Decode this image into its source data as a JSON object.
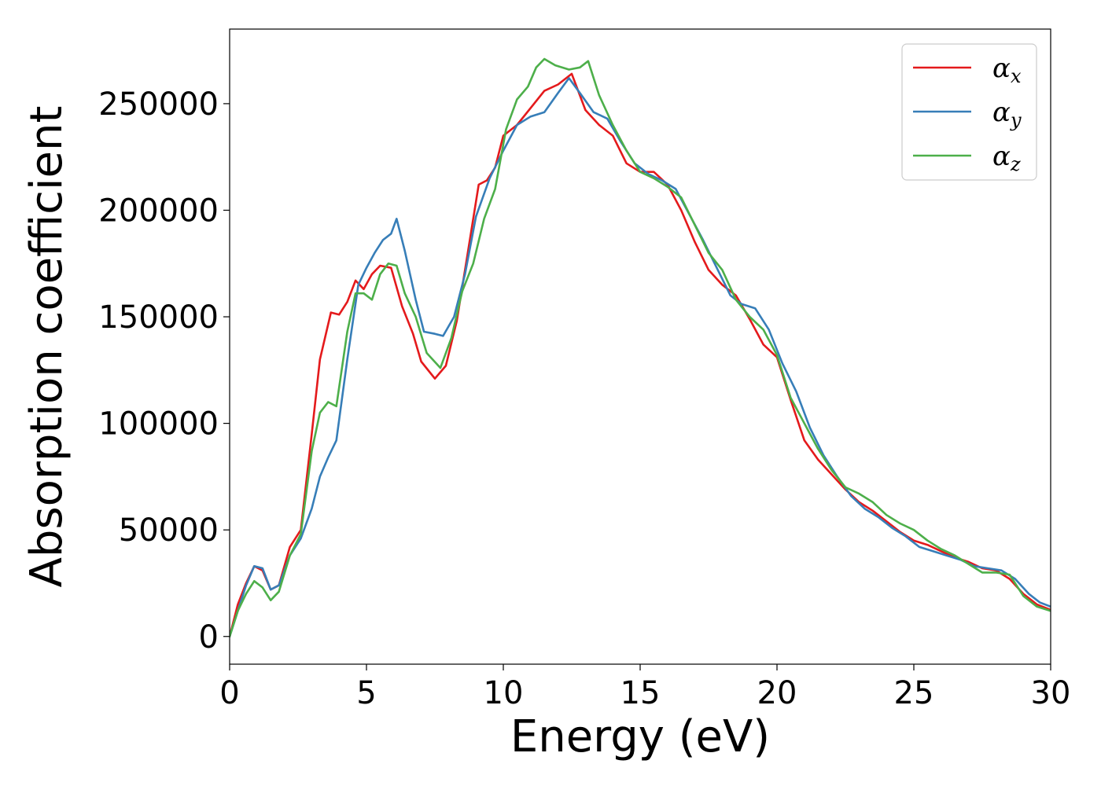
{
  "chart_data": {
    "type": "line",
    "title": "",
    "xlabel": "Energy (eV)",
    "ylabel": "Absorption coefficient",
    "xlim": [
      0,
      30
    ],
    "ylim": [
      -13000,
      285000
    ],
    "xticks": [
      0,
      5,
      10,
      15,
      20,
      25,
      30
    ],
    "xtick_labels": [
      "0",
      "5",
      "10",
      "15",
      "20",
      "25",
      "30"
    ],
    "yticks": [
      0,
      50000,
      100000,
      150000,
      200000,
      250000
    ],
    "ytick_labels": [
      "0",
      "50000",
      "100000",
      "150000",
      "200000",
      "250000"
    ],
    "grid": false,
    "legend_position": "top-right",
    "series": [
      {
        "name": "α",
        "subscript": "x",
        "color": "#e41a1c",
        "points": [
          [
            0,
            0
          ],
          [
            0.3,
            15000
          ],
          [
            0.6,
            25000
          ],
          [
            0.9,
            33000
          ],
          [
            1.2,
            31000
          ],
          [
            1.5,
            22000
          ],
          [
            1.8,
            24000
          ],
          [
            2.2,
            42000
          ],
          [
            2.6,
            50000
          ],
          [
            3.0,
            95000
          ],
          [
            3.3,
            130000
          ],
          [
            3.7,
            152000
          ],
          [
            4.0,
            151000
          ],
          [
            4.3,
            157000
          ],
          [
            4.6,
            167000
          ],
          [
            4.9,
            163000
          ],
          [
            5.2,
            170000
          ],
          [
            5.5,
            174000
          ],
          [
            5.9,
            173000
          ],
          [
            6.3,
            155000
          ],
          [
            6.7,
            142000
          ],
          [
            7.0,
            129000
          ],
          [
            7.5,
            121000
          ],
          [
            7.9,
            127000
          ],
          [
            8.3,
            148000
          ],
          [
            8.7,
            180000
          ],
          [
            9.1,
            212000
          ],
          [
            9.4,
            214000
          ],
          [
            9.7,
            220000
          ],
          [
            10.0,
            235000
          ],
          [
            10.5,
            240000
          ],
          [
            11.0,
            248000
          ],
          [
            11.5,
            256000
          ],
          [
            12.0,
            259000
          ],
          [
            12.5,
            264000
          ],
          [
            13.0,
            247000
          ],
          [
            13.5,
            240000
          ],
          [
            14.0,
            235000
          ],
          [
            14.5,
            222000
          ],
          [
            15.0,
            218000
          ],
          [
            15.5,
            218000
          ],
          [
            16.0,
            212000
          ],
          [
            16.5,
            200000
          ],
          [
            17.0,
            185000
          ],
          [
            17.5,
            172000
          ],
          [
            18.0,
            165000
          ],
          [
            18.5,
            160000
          ],
          [
            19.0,
            149000
          ],
          [
            19.5,
            137000
          ],
          [
            20.0,
            131000
          ],
          [
            20.5,
            111000
          ],
          [
            21.0,
            92000
          ],
          [
            21.5,
            83000
          ],
          [
            22.0,
            76000
          ],
          [
            22.5,
            69000
          ],
          [
            23.0,
            63000
          ],
          [
            23.5,
            59000
          ],
          [
            24.0,
            54000
          ],
          [
            24.5,
            49000
          ],
          [
            25.0,
            45000
          ],
          [
            25.5,
            43000
          ],
          [
            26.0,
            40000
          ],
          [
            26.5,
            37000
          ],
          [
            27.0,
            35000
          ],
          [
            27.5,
            32000
          ],
          [
            28.0,
            31000
          ],
          [
            28.5,
            27000
          ],
          [
            29.0,
            20000
          ],
          [
            29.5,
            15000
          ],
          [
            30.0,
            12500
          ]
        ]
      },
      {
        "name": "α",
        "subscript": "y",
        "color": "#377eb8",
        "points": [
          [
            0,
            0
          ],
          [
            0.3,
            12000
          ],
          [
            0.6,
            24000
          ],
          [
            0.9,
            33000
          ],
          [
            1.2,
            32000
          ],
          [
            1.5,
            22000
          ],
          [
            1.8,
            24000
          ],
          [
            2.2,
            38000
          ],
          [
            2.6,
            46000
          ],
          [
            3.0,
            60000
          ],
          [
            3.3,
            75000
          ],
          [
            3.6,
            84000
          ],
          [
            3.9,
            92000
          ],
          [
            4.3,
            130000
          ],
          [
            4.7,
            165000
          ],
          [
            5.0,
            173000
          ],
          [
            5.3,
            180000
          ],
          [
            5.6,
            186000
          ],
          [
            5.9,
            189000
          ],
          [
            6.1,
            196000
          ],
          [
            6.4,
            181000
          ],
          [
            6.8,
            158000
          ],
          [
            7.1,
            143000
          ],
          [
            7.5,
            142000
          ],
          [
            7.8,
            141000
          ],
          [
            8.2,
            150000
          ],
          [
            8.6,
            170000
          ],
          [
            9.0,
            197000
          ],
          [
            9.5,
            215000
          ],
          [
            10.0,
            228000
          ],
          [
            10.5,
            240000
          ],
          [
            11.0,
            244000
          ],
          [
            11.5,
            246000
          ],
          [
            12.0,
            255000
          ],
          [
            12.4,
            262000
          ],
          [
            12.8,
            255000
          ],
          [
            13.3,
            246000
          ],
          [
            13.8,
            243000
          ],
          [
            14.3,
            232000
          ],
          [
            14.8,
            222000
          ],
          [
            15.3,
            217000
          ],
          [
            15.8,
            214000
          ],
          [
            16.3,
            210000
          ],
          [
            16.8,
            198000
          ],
          [
            17.3,
            186000
          ],
          [
            17.8,
            173000
          ],
          [
            18.3,
            160000
          ],
          [
            18.7,
            156000
          ],
          [
            19.2,
            154000
          ],
          [
            19.7,
            144000
          ],
          [
            20.2,
            128000
          ],
          [
            20.7,
            115000
          ],
          [
            21.2,
            98000
          ],
          [
            21.7,
            85000
          ],
          [
            22.2,
            75000
          ],
          [
            22.7,
            66000
          ],
          [
            23.2,
            60000
          ],
          [
            23.7,
            56000
          ],
          [
            24.2,
            51000
          ],
          [
            24.7,
            47000
          ],
          [
            25.2,
            42000
          ],
          [
            25.7,
            40000
          ],
          [
            26.2,
            38000
          ],
          [
            26.7,
            36000
          ],
          [
            27.2,
            33000
          ],
          [
            27.7,
            32000
          ],
          [
            28.2,
            31000
          ],
          [
            28.7,
            27000
          ],
          [
            29.2,
            20000
          ],
          [
            29.6,
            16000
          ],
          [
            30.0,
            14000
          ]
        ]
      },
      {
        "name": "α",
        "subscript": "z",
        "color": "#4daf4a",
        "points": [
          [
            0,
            0
          ],
          [
            0.3,
            12000
          ],
          [
            0.6,
            20000
          ],
          [
            0.9,
            26000
          ],
          [
            1.2,
            23000
          ],
          [
            1.5,
            17000
          ],
          [
            1.8,
            21000
          ],
          [
            2.2,
            38000
          ],
          [
            2.6,
            48000
          ],
          [
            3.0,
            87000
          ],
          [
            3.3,
            105000
          ],
          [
            3.6,
            110000
          ],
          [
            3.9,
            108000
          ],
          [
            4.3,
            143000
          ],
          [
            4.6,
            161000
          ],
          [
            4.9,
            161000
          ],
          [
            5.2,
            158000
          ],
          [
            5.5,
            170000
          ],
          [
            5.8,
            175000
          ],
          [
            6.1,
            174000
          ],
          [
            6.4,
            161000
          ],
          [
            6.8,
            150000
          ],
          [
            7.2,
            133000
          ],
          [
            7.7,
            126000
          ],
          [
            8.1,
            140000
          ],
          [
            8.5,
            162000
          ],
          [
            8.9,
            175000
          ],
          [
            9.3,
            196000
          ],
          [
            9.7,
            210000
          ],
          [
            10.1,
            238000
          ],
          [
            10.5,
            252000
          ],
          [
            10.9,
            258000
          ],
          [
            11.2,
            267000
          ],
          [
            11.5,
            271000
          ],
          [
            11.9,
            268000
          ],
          [
            12.4,
            266000
          ],
          [
            12.8,
            267000
          ],
          [
            13.1,
            270000
          ],
          [
            13.5,
            254000
          ],
          [
            14.0,
            240000
          ],
          [
            14.5,
            228000
          ],
          [
            15.0,
            218000
          ],
          [
            15.5,
            215000
          ],
          [
            16.0,
            211000
          ],
          [
            16.5,
            206000
          ],
          [
            17.0,
            193000
          ],
          [
            17.5,
            180000
          ],
          [
            18.0,
            172000
          ],
          [
            18.5,
            158000
          ],
          [
            19.0,
            150000
          ],
          [
            19.5,
            144000
          ],
          [
            20.0,
            132000
          ],
          [
            20.5,
            112000
          ],
          [
            21.0,
            100000
          ],
          [
            21.5,
            88000
          ],
          [
            22.0,
            78000
          ],
          [
            22.5,
            70000
          ],
          [
            23.0,
            67000
          ],
          [
            23.5,
            63000
          ],
          [
            24.0,
            57000
          ],
          [
            24.5,
            53000
          ],
          [
            25.0,
            50000
          ],
          [
            25.5,
            45000
          ],
          [
            26.0,
            41000
          ],
          [
            26.5,
            38000
          ],
          [
            27.0,
            34000
          ],
          [
            27.5,
            30000
          ],
          [
            28.0,
            30000
          ],
          [
            28.5,
            29000
          ],
          [
            29.0,
            19000
          ],
          [
            29.5,
            14000
          ],
          [
            30.0,
            12000
          ]
        ]
      }
    ]
  }
}
